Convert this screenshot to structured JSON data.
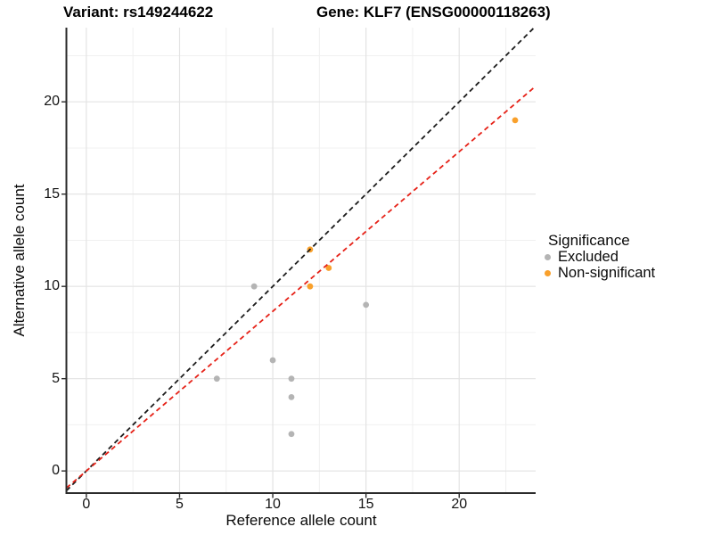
{
  "chart_data": {
    "type": "scatter",
    "titles": [
      "Variant: rs149244622",
      "Gene: KLF7 (ENSG00000118263)"
    ],
    "xlabel": "Reference allele count",
    "ylabel": "Alternative allele count",
    "xlim": [
      -1.07,
      24.1
    ],
    "ylim": [
      -1.2,
      24.02
    ],
    "x_ticks": [
      0,
      5,
      10,
      15,
      20
    ],
    "y_ticks": [
      0,
      5,
      10,
      15,
      20
    ],
    "x_minor_ticks": [
      2.5,
      7.5,
      12.5,
      17.5,
      22.5
    ],
    "y_minor_ticks": [
      2.5,
      7.5,
      12.5,
      17.5,
      22.5
    ],
    "grid": true,
    "legend_title": "Significance",
    "legend_position": "right",
    "series": [
      {
        "name": "Excluded",
        "color": "#B4B4B4",
        "points": [
          [
            7,
            5
          ],
          [
            9,
            10
          ],
          [
            10,
            6
          ],
          [
            11,
            5
          ],
          [
            11,
            4
          ],
          [
            11,
            2
          ],
          [
            15,
            9
          ]
        ]
      },
      {
        "name": "Non-significant",
        "color": "#F9A02B",
        "points": [
          [
            12,
            10
          ],
          [
            12,
            12
          ],
          [
            13,
            11
          ],
          [
            23,
            19
          ]
        ]
      }
    ],
    "ablines": [
      {
        "name": "identity-line",
        "slope": 1,
        "intercept": 0,
        "color": "#1C1C1C",
        "dash": "5.5,4"
      },
      {
        "name": "fit-line",
        "slope": 0.865,
        "intercept": 0,
        "color": "#E62218",
        "dash": "5.5,4"
      }
    ]
  },
  "colors": {
    "background": "#FFFFFF",
    "grid_major": "#E3E3E3",
    "grid_minor": "#F0F0F0",
    "axis_line": "#2B2B2B",
    "tick_text": "#141414"
  }
}
